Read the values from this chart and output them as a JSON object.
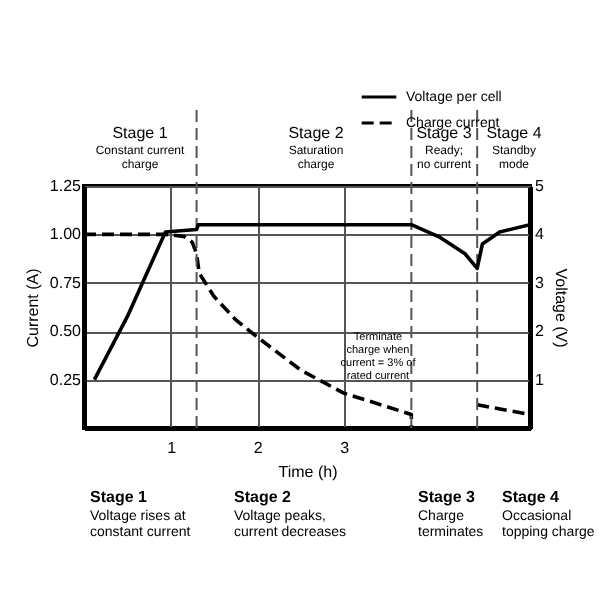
{
  "chart_data": {
    "type": "line",
    "xlabel": "Time (h)",
    "ylabel": "Current (A)",
    "y2label": "Voltage (V)",
    "xlim": [
      0,
      5.15
    ],
    "xticks": [
      1,
      2,
      3
    ],
    "ylim": [
      0,
      1.25
    ],
    "yticks": [
      0.25,
      {
        "value": 0.5,
        "label": "0.50"
      },
      0.75,
      {
        "value": 1,
        "label": "1.00"
      },
      1.25
    ],
    "y2lim": [
      0,
      5
    ],
    "y2ticks": [
      1,
      2,
      3,
      4,
      5
    ],
    "grid": true,
    "legend": "top right",
    "series": [
      {
        "name": "Voltage per cell",
        "color": "#000000",
        "axis": "y2",
        "line_style": "solid",
        "x": [
          0.12,
          0.5,
          0.94,
          1.3,
          1.32,
          3.78,
          4.1,
          4.4,
          4.54,
          4.6,
          4.8,
          5.15
        ],
        "values": [
          1.0,
          2.3,
          4.05,
          4.1,
          4.2,
          4.2,
          3.95,
          3.6,
          3.3,
          3.8,
          4.05,
          4.2
        ]
      },
      {
        "name": "Charge current",
        "color": "#000000",
        "line_style": "dashed",
        "x": [
          0,
          0.5,
          0.94,
          1.15,
          1.25,
          1.3,
          1.33,
          1.5,
          1.75,
          2,
          2.5,
          3,
          3.5,
          3.78,
          3.78,
          4.2,
          4.54,
          5.15
        ],
        "values": [
          1.0,
          1.0,
          1.0,
          0.99,
          0.96,
          0.9,
          0.8,
          0.68,
          0.56,
          0.47,
          0.3,
          0.18,
          0.11,
          0.07,
          0.0,
          null,
          0.12,
          0.07
        ]
      }
    ],
    "ref_lines": [
      {
        "axis": "x",
        "value": 1.3,
        "color": "#555555",
        "line_style": "dashed"
      },
      {
        "axis": "x",
        "value": 3.78,
        "color": "#555555",
        "line_style": "dashed"
      },
      {
        "axis": "x",
        "value": 4.54,
        "color": "#555555",
        "line_style": "dashed"
      }
    ],
    "annotations": [
      "Stage 1",
      "Constant current\ncharge",
      "Stage 2",
      "Saturation\ncharge",
      "Stage 3",
      "Ready;\nno current",
      "Stage 4",
      "Standby\nmode",
      "Terminate\ncharge when\ncurrent = 3% of\nrated current",
      "Stage 1",
      "Voltage rises at\nconstant current",
      "Stage 2",
      "Voltage peaks,\ncurrent decreases",
      "Stage 3",
      "Charge\nterminates",
      "Stage 4",
      "Occasional\ntopping charge"
    ]
  }
}
